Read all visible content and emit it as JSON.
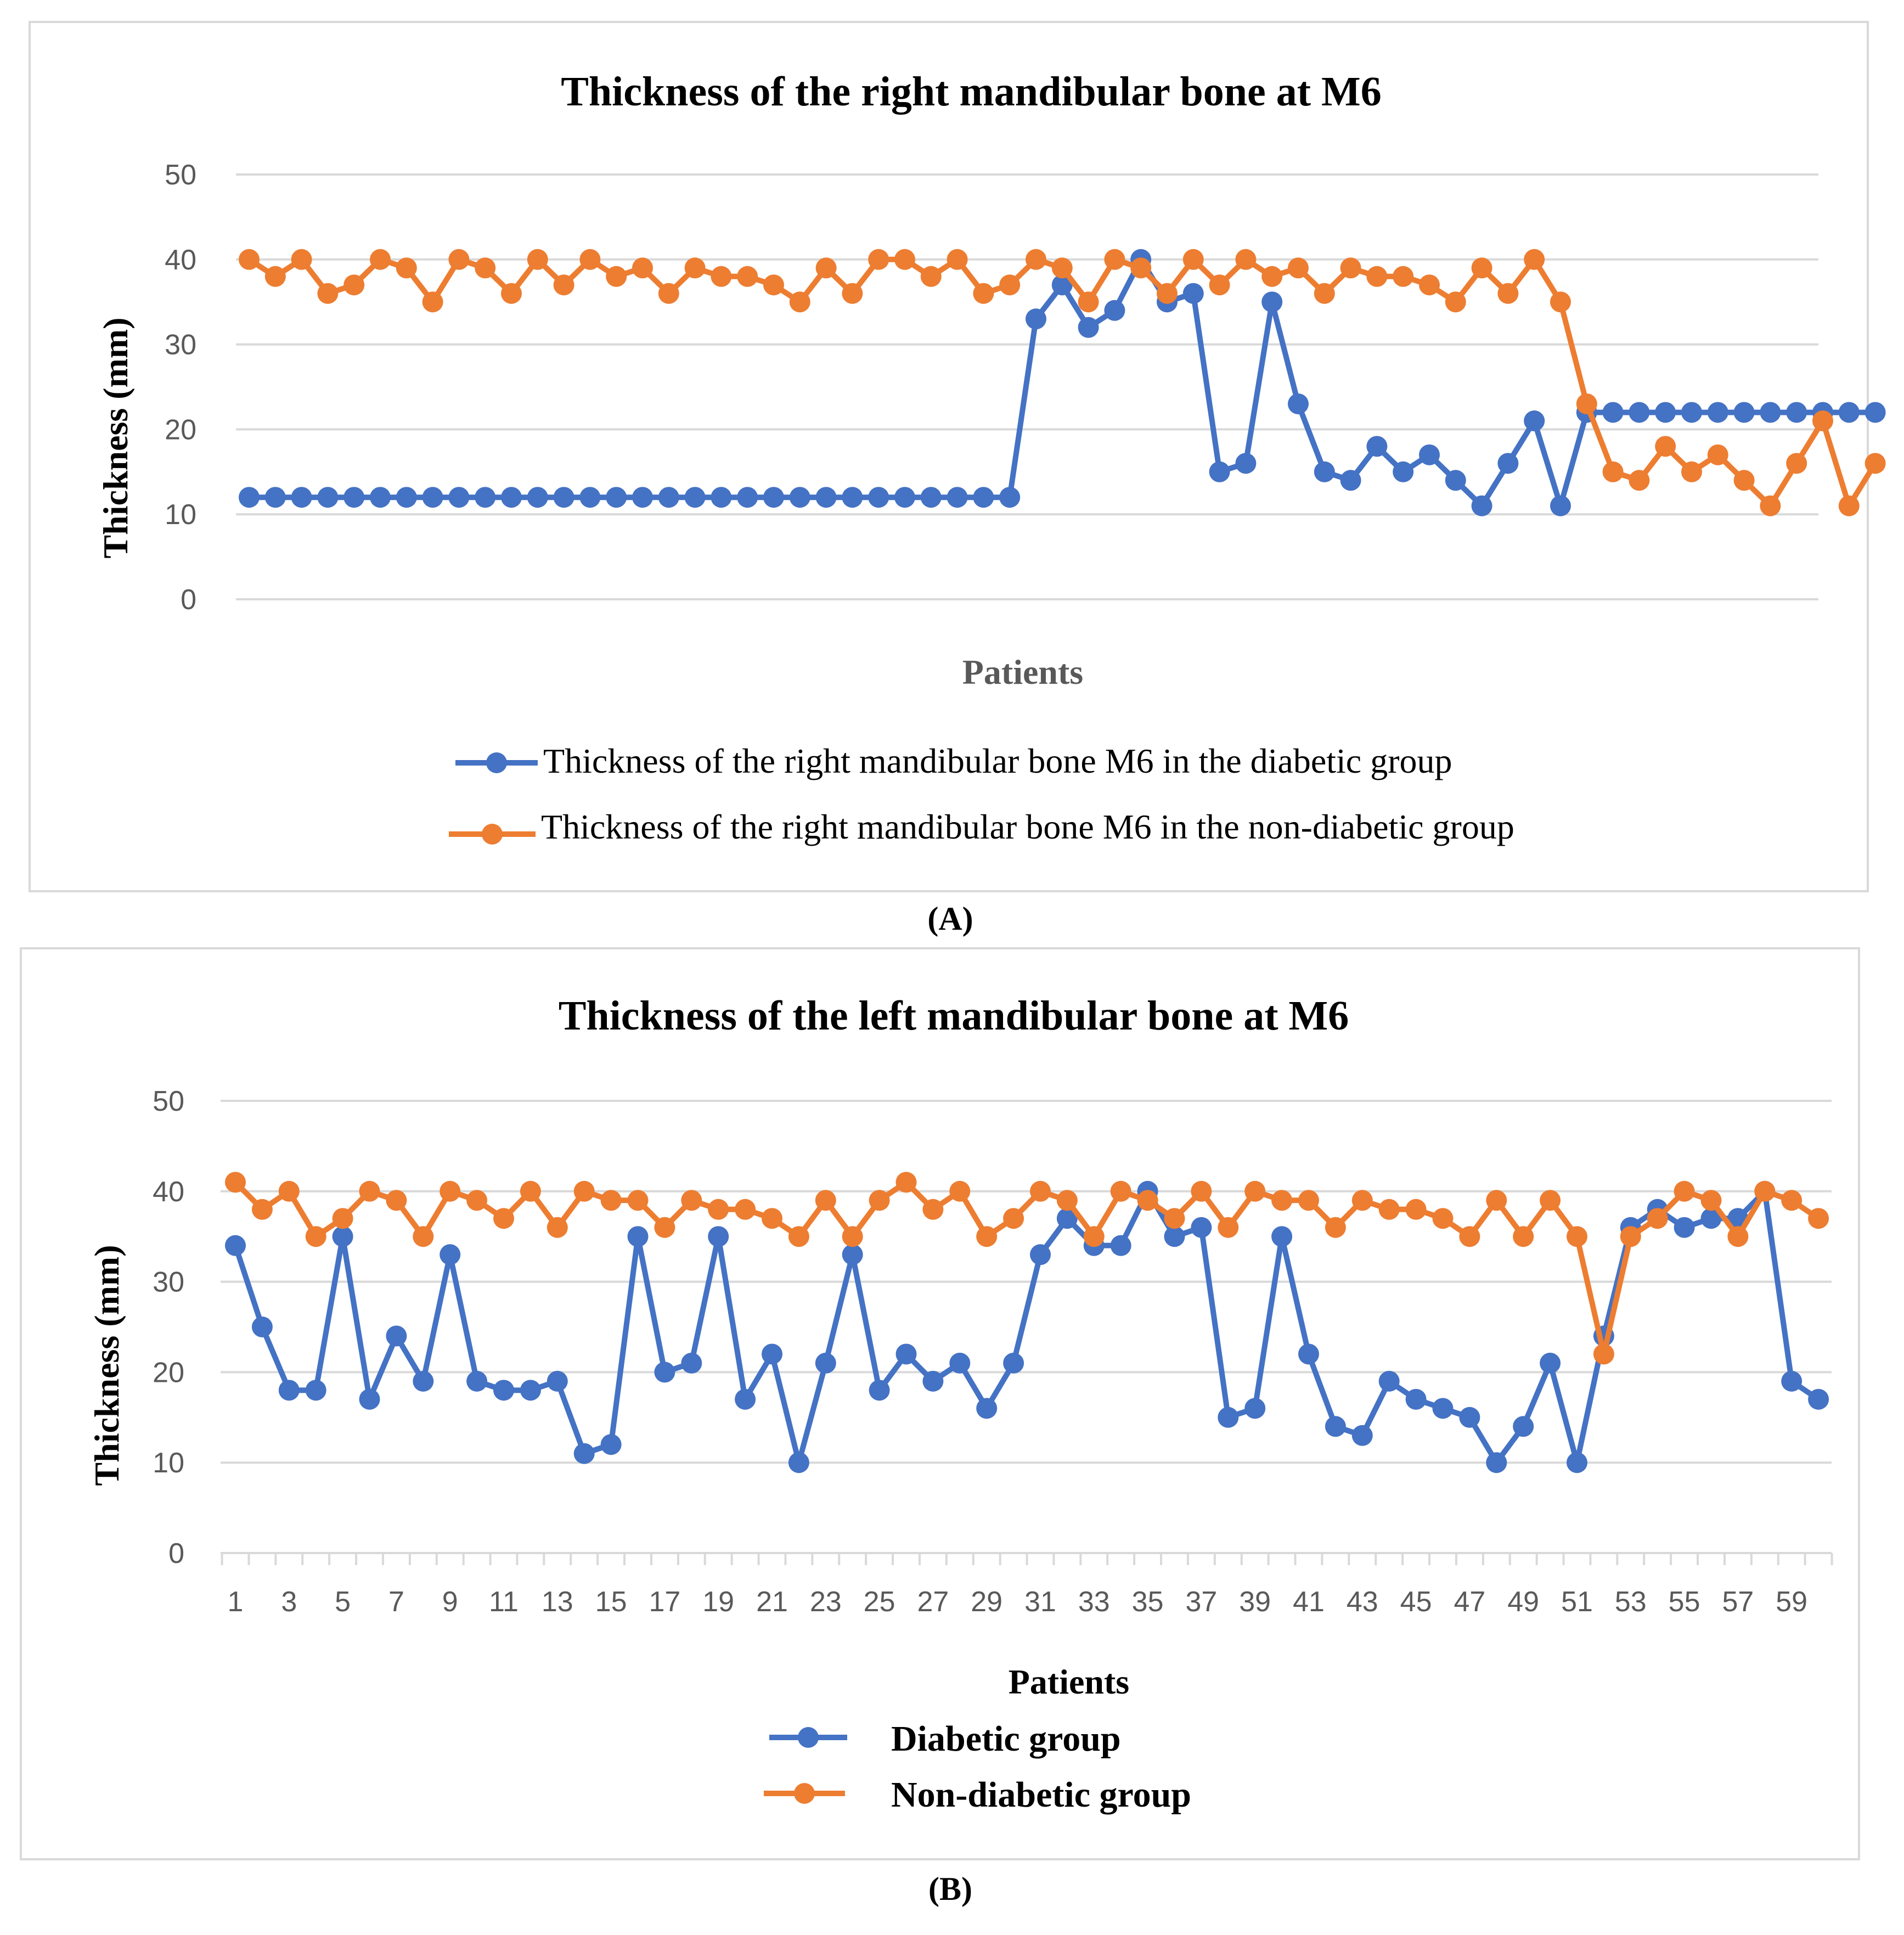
{
  "colors": {
    "diabetic": "#4472c4",
    "non_diabetic": "#ed7d31",
    "grid": "#d9d9d9",
    "tick_text": "#595959"
  },
  "panel_a_label": "(A)",
  "panel_b_label": "(B)",
  "chart_data": [
    {
      "type": "line",
      "title": "Thickness of the right mandibular bone at M6",
      "xlabel": "Patients",
      "ylabel": "Thickness (mm)",
      "ylim": [
        0,
        50
      ],
      "yticks": [
        0,
        10,
        20,
        30,
        40,
        50
      ],
      "grid": true,
      "legend_position": "bottom",
      "x": [
        1,
        2,
        3,
        4,
        5,
        6,
        7,
        8,
        9,
        10,
        11,
        12,
        13,
        14,
        15,
        16,
        17,
        18,
        19,
        20,
        21,
        22,
        23,
        24,
        25,
        26,
        27,
        28,
        29,
        30,
        31,
        32,
        33,
        34,
        35,
        36,
        37,
        38,
        39,
        40,
        41,
        42,
        43,
        44,
        45,
        46,
        47,
        48,
        49,
        50,
        51,
        52,
        53,
        54,
        55,
        56,
        57,
        58,
        59,
        60,
        61,
        62,
        63
      ],
      "xtick_labels": [],
      "series": [
        {
          "name": "Thickness of the right mandibular bone M6 in the diabetic group",
          "color": "#4472c4",
          "values": [
            12,
            12,
            12,
            12,
            12,
            12,
            12,
            12,
            12,
            12,
            12,
            12,
            12,
            12,
            12,
            12,
            12,
            12,
            12,
            12,
            12,
            12,
            12,
            12,
            12,
            12,
            12,
            12,
            12,
            12,
            33,
            37,
            32,
            34,
            40,
            35,
            36,
            15,
            16,
            35,
            23,
            15,
            14,
            18,
            15,
            17,
            14,
            11,
            16,
            21,
            11,
            22,
            22,
            22,
            22,
            22,
            22,
            22,
            22,
            22,
            22,
            22,
            22
          ]
        },
        {
          "name": "Thickness of the right mandibular bone M6 in the non-diabetic group",
          "color": "#ed7d31",
          "values": [
            40,
            38,
            40,
            36,
            37,
            40,
            39,
            35,
            40,
            39,
            36,
            40,
            37,
            40,
            38,
            39,
            36,
            39,
            38,
            38,
            37,
            35,
            39,
            36,
            40,
            40,
            38,
            40,
            36,
            37,
            40,
            39,
            35,
            40,
            39,
            36,
            40,
            37,
            40,
            38,
            39,
            36,
            39,
            38,
            38,
            37,
            35,
            39,
            36,
            40,
            35,
            23,
            15,
            14,
            18,
            15,
            17,
            14,
            11,
            16,
            21,
            11,
            16
          ]
        }
      ]
    },
    {
      "type": "line",
      "title": "Thickness of the left mandibular bone at M6",
      "xlabel": "Patients",
      "ylabel": "Thickness (mm)",
      "ylim": [
        0,
        50
      ],
      "yticks": [
        0,
        10,
        20,
        30,
        40,
        50
      ],
      "grid": true,
      "legend_position": "bottom",
      "x": [
        1,
        2,
        3,
        4,
        5,
        6,
        7,
        8,
        9,
        10,
        11,
        12,
        13,
        14,
        15,
        16,
        17,
        18,
        19,
        20,
        21,
        22,
        23,
        24,
        25,
        26,
        27,
        28,
        29,
        30,
        31,
        32,
        33,
        34,
        35,
        36,
        37,
        38,
        39,
        40,
        41,
        42,
        43,
        44,
        45,
        46,
        47,
        48,
        49,
        50,
        51,
        52,
        53,
        54,
        55,
        56,
        57,
        58,
        59,
        60
      ],
      "xtick_labels": [
        "1",
        "3",
        "5",
        "7",
        "9",
        "11",
        "13",
        "15",
        "17",
        "19",
        "21",
        "23",
        "25",
        "27",
        "29",
        "31",
        "33",
        "35",
        "37",
        "39",
        "41",
        "43",
        "45",
        "47",
        "49",
        "51",
        "53",
        "55",
        "57",
        "59"
      ],
      "series": [
        {
          "name": "Diabetic group",
          "color": "#4472c4",
          "values": [
            34,
            25,
            18,
            18,
            35,
            17,
            24,
            19,
            33,
            19,
            18,
            18,
            19,
            11,
            12,
            35,
            20,
            21,
            35,
            17,
            22,
            10,
            21,
            33,
            18,
            22,
            19,
            21,
            16,
            21,
            33,
            37,
            34,
            34,
            40,
            35,
            36,
            15,
            16,
            35,
            22,
            14,
            13,
            19,
            17,
            16,
            15,
            10,
            14,
            21,
            10,
            24,
            36,
            38,
            36,
            37,
            37,
            40,
            19,
            17
          ]
        },
        {
          "name": "Non-diabetic group",
          "color": "#ed7d31",
          "values": [
            41,
            38,
            40,
            35,
            37,
            40,
            39,
            35,
            40,
            39,
            37,
            40,
            36,
            40,
            39,
            39,
            36,
            39,
            38,
            38,
            37,
            35,
            39,
            35,
            39,
            41,
            38,
            40,
            35,
            37,
            40,
            39,
            35,
            40,
            39,
            37,
            40,
            36,
            40,
            39,
            39,
            36,
            39,
            38,
            38,
            37,
            35,
            39,
            35,
            39,
            35,
            22,
            35,
            37,
            40,
            39,
            35,
            40,
            39,
            37
          ]
        }
      ]
    }
  ]
}
